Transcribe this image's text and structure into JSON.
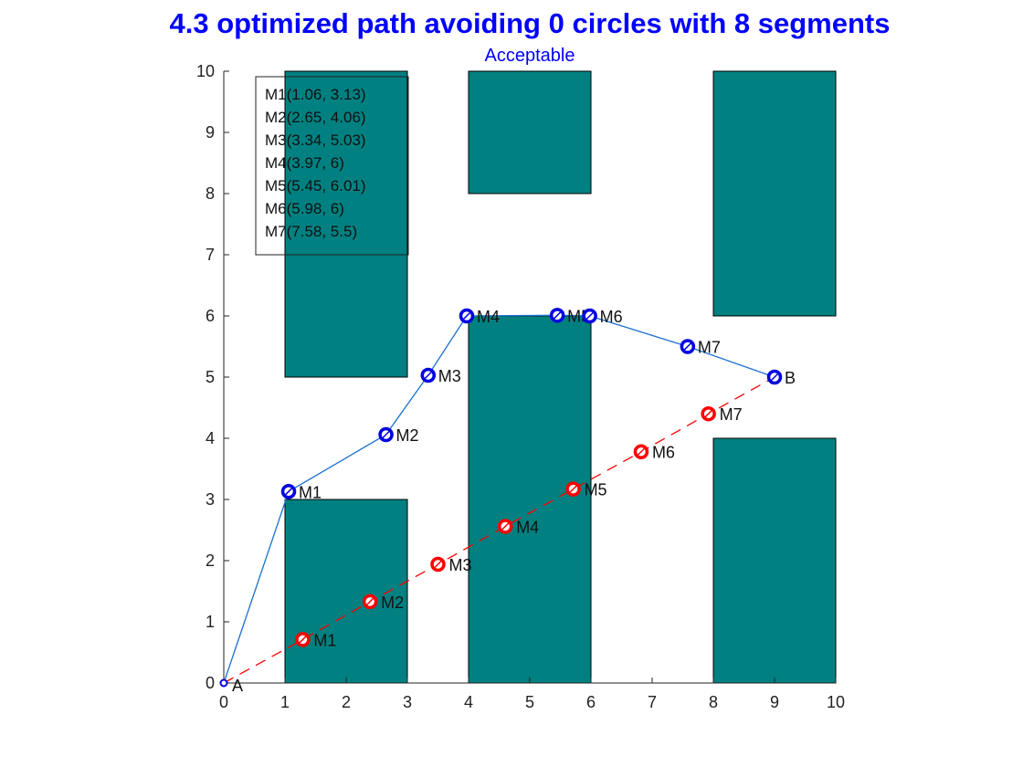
{
  "chart_data": {
    "type": "scatter",
    "title": "4.3 optimized path avoiding 0 circles with 8 segments",
    "subtitle": "Acceptable",
    "xlim": [
      0,
      10
    ],
    "ylim": [
      0,
      10
    ],
    "x_ticks": [
      "0",
      "1",
      "2",
      "3",
      "4",
      "5",
      "6",
      "7",
      "8",
      "9",
      "10"
    ],
    "y_ticks": [
      "0",
      "1",
      "2",
      "3",
      "4",
      "5",
      "6",
      "7",
      "8",
      "9",
      "10"
    ],
    "grid": false,
    "obstacle_color": "#008080",
    "obstacles": [
      {
        "x0": 1,
        "x1": 3,
        "y0": 0,
        "y1": 3
      },
      {
        "x0": 1,
        "x1": 3,
        "y0": 5,
        "y1": 10
      },
      {
        "x0": 4,
        "x1": 6,
        "y0": 0,
        "y1": 6
      },
      {
        "x0": 4,
        "x1": 6,
        "y0": 8,
        "y1": 10
      },
      {
        "x0": 8,
        "x1": 10,
        "y0": 0,
        "y1": 4
      },
      {
        "x0": 8,
        "x1": 10,
        "y0": 6,
        "y1": 10
      }
    ],
    "series": [
      {
        "style": "dashed",
        "color": "#ff0000",
        "points": [
          {
            "label": "",
            "x": 0,
            "y": 0
          },
          {
            "label": "M1",
            "x": 1.29,
            "y": 0.71
          },
          {
            "label": "M2",
            "x": 2.39,
            "y": 1.33
          },
          {
            "label": "M3",
            "x": 3.5,
            "y": 1.94
          },
          {
            "label": "M4",
            "x": 4.6,
            "y": 2.56
          },
          {
            "label": "M5",
            "x": 5.71,
            "y": 3.17
          },
          {
            "label": "M6",
            "x": 6.82,
            "y": 3.78
          },
          {
            "label": "M7",
            "x": 7.92,
            "y": 4.4
          },
          {
            "label": "",
            "x": 9,
            "y": 5
          }
        ]
      },
      {
        "style": "solid",
        "color": "#1a6fd0",
        "marker_color": "#0000e0",
        "points": [
          {
            "label": "A",
            "x": 0,
            "y": 0
          },
          {
            "label": "M1",
            "x": 1.06,
            "y": 3.13
          },
          {
            "label": "M2",
            "x": 2.65,
            "y": 4.06
          },
          {
            "label": "M3",
            "x": 3.34,
            "y": 5.03
          },
          {
            "label": "M4",
            "x": 3.97,
            "y": 6
          },
          {
            "label": "M5",
            "x": 5.45,
            "y": 6.01
          },
          {
            "label": "M6",
            "x": 5.98,
            "y": 6
          },
          {
            "label": "M7",
            "x": 7.58,
            "y": 5.5
          },
          {
            "label": "B",
            "x": 9,
            "y": 5
          }
        ]
      }
    ],
    "legend": {
      "placement": "top-left",
      "entries": [
        "M1(1.06, 3.13)",
        "M2(2.65, 4.06)",
        "M3(3.34, 5.03)",
        "M4(3.97, 6)",
        "M5(5.45, 6.01)",
        "M6(5.98, 6)",
        "M7(7.58, 5.5)"
      ]
    }
  }
}
